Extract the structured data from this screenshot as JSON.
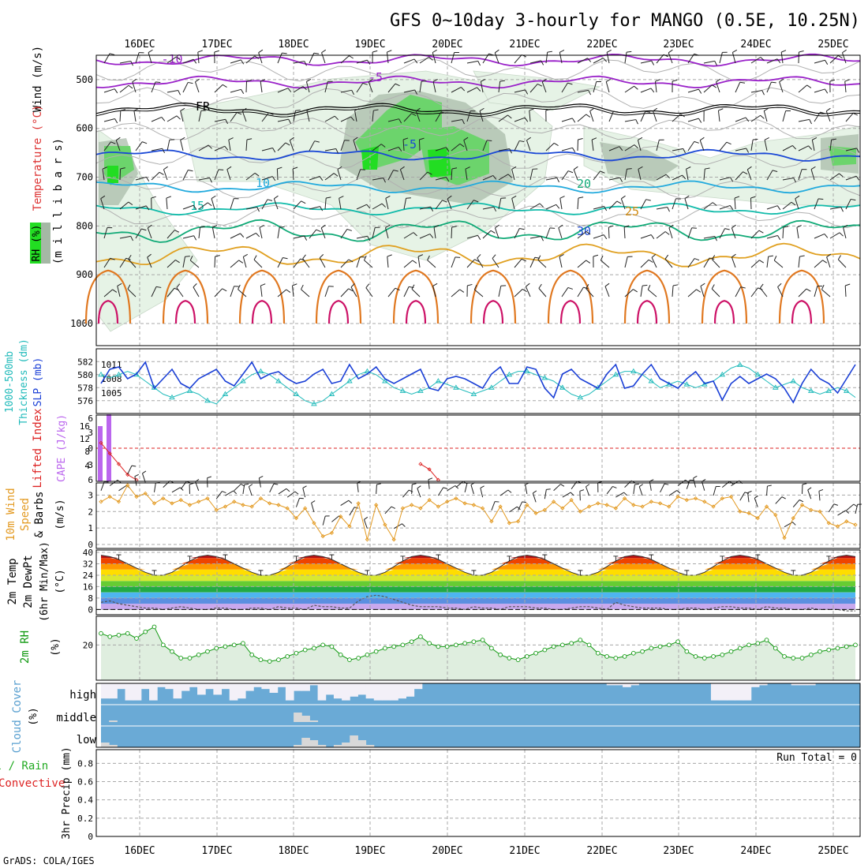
{
  "title": "GFS 0~10day 3-hourly for MANGO (0.5E, 10.25N)",
  "footer": "GrADS: COLA/IGES",
  "dates": [
    "16DEC",
    "17DEC",
    "18DEC",
    "19DEC",
    "20DEC",
    "21DEC",
    "22DEC",
    "23DEC",
    "24DEC",
    "25DEC"
  ],
  "colors": {
    "grid": "#a8a8a8",
    "frame": "#000000",
    "rh_light": "#e6f3e6",
    "rh_mid": "#c7dcc7",
    "rh_gray": "#a5b8a5",
    "rh_green": "#6cd46c",
    "rh_bright": "#22dd22",
    "slp": "#1a3fd6",
    "thick": "#22bbbb",
    "cape": "#bb66ee",
    "li": "#dd2222",
    "wind10": "#e39a22",
    "rh2m": "#119911",
    "rh2m_fill": "#dfeedf",
    "cloud": "#6aaad6",
    "cloud_clear": "#f3f0f8",
    "cloud_low": "#d8d8d8"
  },
  "chart_data": [
    {
      "type": "contour",
      "name": "profile",
      "labels": {
        "wind": "Wind (m/s)",
        "temperature": "Temperature (°C)",
        "rh": "RH (%)",
        "units": "(m i l l i b a r s)"
      },
      "y_ticks": [
        "500",
        "600",
        "700",
        "800",
        "900",
        "1000"
      ],
      "ylim": [
        450,
        1000
      ],
      "isotherm_labels": [
        "-10",
        "-5",
        "FR",
        "-5",
        "10",
        "15",
        "20",
        "25",
        "30"
      ],
      "isotherms": [
        {
          "label": "-10",
          "level": 460,
          "color": "#9a22c9"
        },
        {
          "label": "-5",
          "level": 505,
          "color": "#9a22c9"
        },
        {
          "label": "FR",
          "level": 560,
          "color": "#000000"
        },
        {
          "label": "-5",
          "level": 655,
          "color": "#1a48d6"
        },
        {
          "label": "10",
          "level": 720,
          "color": "#22aadd"
        },
        {
          "label": "15",
          "level": 765,
          "color": "#11bbaa"
        },
        {
          "label": "20",
          "level": 810,
          "color": "#11aa77"
        },
        {
          "label": "25",
          "level": 860,
          "color": "#e0a020"
        }
      ]
    },
    {
      "type": "line",
      "name": "slp_thickness",
      "labels": {
        "thick": "1000-500mb",
        "thick2": "Thickness (dm)",
        "slp": "SLP (mb)"
      },
      "left_ticks": [
        "582",
        "580",
        "578",
        "576"
      ],
      "right_ticks": [
        "1011",
        "1008",
        "1005"
      ],
      "thick_range": [
        575,
        583
      ],
      "slp_range": [
        1002,
        1013
      ],
      "slp": [
        1007,
        1010,
        1010.5,
        1008,
        1009,
        1011.5,
        1006,
        1008,
        1010,
        1007,
        1006,
        1008,
        1009,
        1010,
        1007.5,
        1006.5,
        1009,
        1011.5,
        1008,
        1009,
        1009.5,
        1008,
        1007,
        1007.5,
        1009,
        1010,
        1007,
        1007.5,
        1011,
        1008,
        1009,
        1010.5,
        1008,
        1007,
        1008,
        1009,
        1010,
        1006,
        1005.5,
        1008,
        1008.5,
        1008,
        1007,
        1006,
        1009,
        1010.5,
        1007,
        1007,
        1010.5,
        1010,
        1006,
        1004,
        1009,
        1010,
        1008,
        1007,
        1006,
        1009,
        1011,
        1006,
        1006.5,
        1009,
        1011,
        1008,
        1007,
        1006,
        1008,
        1009.5,
        1007,
        1007.5,
        1003.5,
        1007,
        1008.5,
        1007,
        1008,
        1009,
        1008,
        1006,
        1003,
        1007,
        1010,
        1008,
        1007,
        1005,
        1008,
        1011
      ],
      "thickness": [
        580,
        579.5,
        580,
        580.5,
        580,
        579,
        578,
        577,
        576.5,
        577,
        577.5,
        577,
        576,
        575.5,
        577,
        578,
        579,
        580,
        580.5,
        580,
        579,
        578,
        577,
        576,
        575.5,
        576,
        577,
        578,
        579,
        580,
        580.5,
        580,
        579,
        578,
        577.5,
        577,
        577.5,
        578,
        579,
        578.5,
        578,
        577.5,
        577,
        577.5,
        578,
        579,
        580,
        580.5,
        580.5,
        580,
        579.5,
        579,
        578,
        577,
        576.5,
        577,
        578,
        579,
        580,
        580.5,
        580.5,
        580,
        579,
        578,
        578.5,
        579,
        578.5,
        578,
        578.5,
        579,
        580,
        581,
        581.5,
        581,
        580,
        579,
        578,
        578.5,
        579,
        578,
        577.5,
        577,
        577.5,
        578,
        577.5,
        576.5
      ]
    },
    {
      "type": "bar",
      "name": "cape_li",
      "labels": {
        "li": "Lifted Index",
        "cape": "CAPE (J/kg)"
      },
      "left_ticks": [
        "6",
        "3",
        "0",
        "3",
        "6"
      ],
      "right_ticks": [
        "16",
        "12",
        "8",
        "4"
      ],
      "cape": [
        14,
        17
      ],
      "lifted_index": [
        -1,
        1,
        3,
        5,
        6,
        null,
        null,
        null,
        null,
        null,
        null,
        null,
        null,
        null,
        null,
        null,
        null,
        null,
        null,
        null,
        null,
        null,
        null,
        null,
        null,
        null,
        null,
        null,
        null,
        null,
        null,
        null,
        null,
        null,
        null,
        null,
        3,
        4,
        6
      ]
    },
    {
      "type": "line",
      "name": "wind10",
      "labels": {
        "title": "10m Wind",
        "sub1": "Speed",
        "sub2": "& Barbs",
        "units": "(m/s)"
      },
      "y_ticks": [
        "3",
        "2",
        "1",
        "0"
      ],
      "ylim": [
        0,
        3.5
      ],
      "speed": [
        2.6,
        2.9,
        2.6,
        3.6,
        2.9,
        3.1,
        2.5,
        2.8,
        2.5,
        2.7,
        2.4,
        2.6,
        2.8,
        2.1,
        2.3,
        2.6,
        2.4,
        2.3,
        2.8,
        2.5,
        2.4,
        2.2,
        1.6,
        2.2,
        1.3,
        0.5,
        0.7,
        1.7,
        1.1,
        2.5,
        0.3,
        2.4,
        1.2,
        0.3,
        2.2,
        2.4,
        2.2,
        2.7,
        2.3,
        2.6,
        2.8,
        2.5,
        2.4,
        2.2,
        1.4,
        2.3,
        1.3,
        1.4,
        2.4,
        1.9,
        2.1,
        2.6,
        2.2,
        2.7,
        2.0,
        2.3,
        2.5,
        2.4,
        2.2,
        2.8,
        2.4,
        2.3,
        2.6,
        2.5,
        2.3,
        2.9,
        2.7,
        2.8,
        2.6,
        2.3,
        2.8,
        2.9,
        2.0,
        1.9,
        1.6,
        2.3,
        1.8,
        0.4,
        1.6,
        2.4,
        2.1,
        2.0,
        1.3,
        1.1,
        1.4,
        1.2
      ]
    },
    {
      "type": "area",
      "name": "temp2m",
      "labels": {
        "t1": "2m Temp",
        "t2": "2m DewPt",
        "t3": "(6hr Min/Max)",
        "units": "(°C)"
      },
      "y_ticks": [
        "40",
        "32",
        "24",
        "16",
        "8",
        "0"
      ],
      "ylim": [
        -2,
        40
      ],
      "temp": [
        38,
        37,
        35,
        32,
        29,
        26,
        24,
        24,
        26,
        30,
        34,
        37,
        38,
        37,
        35,
        32,
        29,
        26,
        24,
        24,
        26,
        30,
        34,
        37,
        38,
        37,
        35,
        32,
        29,
        26,
        24,
        24,
        26,
        30,
        34,
        37,
        38,
        37,
        35,
        32,
        29,
        26,
        24,
        24,
        26,
        30,
        34,
        37,
        38,
        37,
        35,
        32,
        29,
        26,
        24,
        24,
        26,
        30,
        34,
        37,
        38,
        37,
        35,
        32,
        29,
        26,
        24,
        24,
        26,
        30,
        34,
        37,
        38,
        37,
        35,
        32,
        29,
        26,
        24,
        24,
        26,
        30,
        34,
        37,
        38,
        37
      ],
      "dewpt": [
        5,
        6,
        4,
        3,
        2,
        1,
        1,
        0,
        1,
        2,
        1,
        0,
        0,
        1,
        1,
        0,
        0,
        1,
        1,
        0,
        2,
        1,
        1,
        0,
        3,
        2,
        2,
        1,
        1,
        6,
        9,
        10,
        9,
        7,
        5,
        3,
        2,
        2,
        2,
        1,
        1,
        0,
        2,
        1,
        1,
        0,
        2,
        2,
        2,
        1,
        1,
        0,
        0,
        1,
        2,
        2,
        1,
        0,
        5,
        3,
        2,
        1,
        1,
        1,
        0,
        0,
        1,
        1,
        0,
        1,
        2,
        2,
        1,
        1,
        0,
        2,
        1,
        1,
        0,
        0,
        1,
        0,
        0,
        0,
        -1,
        -1
      ]
    },
    {
      "type": "line",
      "name": "rh2m",
      "labels": {
        "title": "2m RH",
        "units": "(%)"
      },
      "y_ticks": [
        "20"
      ],
      "ylim": [
        0,
        36
      ],
      "values": [
        27,
        25,
        26,
        27,
        24,
        28,
        31,
        20,
        16,
        12,
        12,
        14,
        16,
        18,
        19,
        20,
        21,
        14,
        11,
        10,
        11,
        13,
        15,
        17,
        18,
        20,
        19,
        14,
        11,
        12,
        14,
        16,
        18,
        19,
        20,
        22,
        25,
        21,
        19,
        19,
        20,
        21,
        22,
        23,
        18,
        14,
        12,
        11,
        13,
        15,
        17,
        19,
        20,
        21,
        23,
        20,
        15,
        13,
        12,
        13,
        15,
        16,
        18,
        19,
        20,
        22,
        16,
        13,
        12,
        13,
        14,
        16,
        18,
        20,
        21,
        23,
        18,
        13,
        12,
        12,
        14,
        16,
        17,
        18,
        19,
        20
      ]
    },
    {
      "type": "heatmap",
      "name": "cloud",
      "labels": {
        "title": "Cloud Cover",
        "units": "(%)"
      },
      "y_ticks": [
        "high",
        "middle",
        "low"
      ],
      "high": [
        0.8,
        0.8,
        0.3,
        0.9,
        0.9,
        0.3,
        0.9,
        0.2,
        0.3,
        0.8,
        0.4,
        0.2,
        0.6,
        0.3,
        0.6,
        0.3,
        0.9,
        0.8,
        0.4,
        0.2,
        0.3,
        0.5,
        0.2,
        0.9,
        0.4,
        0.4,
        0.1,
        0.9,
        0.6,
        0.8,
        0.9,
        0.7,
        0.6,
        0.8,
        0.9,
        0.9,
        0.9,
        0.8,
        0.7,
        0.3,
        0,
        0,
        0,
        0,
        0,
        0,
        0,
        0,
        0,
        0,
        0,
        0,
        0,
        0,
        0,
        0,
        0,
        0,
        0,
        0,
        0,
        0,
        0,
        0.1,
        0.1,
        0.2,
        0.1,
        0,
        0,
        0,
        0,
        0,
        0,
        0,
        0,
        0,
        0.9,
        0.9,
        0.9,
        0.9,
        0.9,
        0.2,
        0.1,
        0,
        0,
        0,
        0.1,
        0.1,
        0.1,
        0,
        0,
        0,
        0,
        0
      ],
      "middle": [
        0,
        0.1,
        0,
        0,
        0,
        0,
        0,
        0,
        0,
        0,
        0,
        0,
        0,
        0,
        0,
        0,
        0,
        0,
        0,
        0,
        0,
        0,
        0,
        0,
        0.6,
        0.4,
        0.1,
        0,
        0,
        0,
        0,
        0,
        0,
        0,
        0,
        0,
        0,
        0,
        0,
        0,
        0,
        0,
        0,
        0,
        0,
        0,
        0,
        0,
        0,
        0,
        0,
        0,
        0,
        0,
        0,
        0,
        0,
        0,
        0,
        0,
        0,
        0,
        0,
        0,
        0,
        0,
        0,
        0,
        0,
        0,
        0,
        0,
        0,
        0,
        0,
        0,
        0,
        0,
        0,
        0,
        0,
        0,
        0,
        0,
        0,
        0
      ],
      "low": [
        0.2,
        0.1,
        0,
        0,
        0,
        0,
        0,
        0,
        0,
        0,
        0,
        0,
        0,
        0,
        0,
        0,
        0,
        0,
        0,
        0,
        0,
        0,
        0,
        0,
        0.1,
        0.4,
        0.3,
        0.1,
        0,
        0.1,
        0.2,
        0.5,
        0.3,
        0.1,
        0,
        0,
        0,
        0,
        0,
        0,
        0,
        0,
        0,
        0,
        0,
        0,
        0,
        0,
        0,
        0,
        0,
        0,
        0,
        0,
        0,
        0,
        0,
        0,
        0,
        0,
        0,
        0,
        0,
        0,
        0,
        0,
        0,
        0,
        0,
        0,
        0,
        0,
        0,
        0,
        0,
        0,
        0,
        0,
        0,
        0,
        0,
        0,
        0,
        0,
        0,
        0
      ]
    },
    {
      "type": "bar",
      "name": "precip",
      "labels": {
        "l1": "Total / Rain",
        "l2": "Convective",
        "units": "3hr Precip (mm)",
        "run_total": "Run Total = 0"
      },
      "y_ticks": [
        "0.8",
        "0.6",
        "0.4",
        "0.2",
        "0"
      ],
      "ylim": [
        0,
        0.95
      ],
      "total": []
    }
  ]
}
